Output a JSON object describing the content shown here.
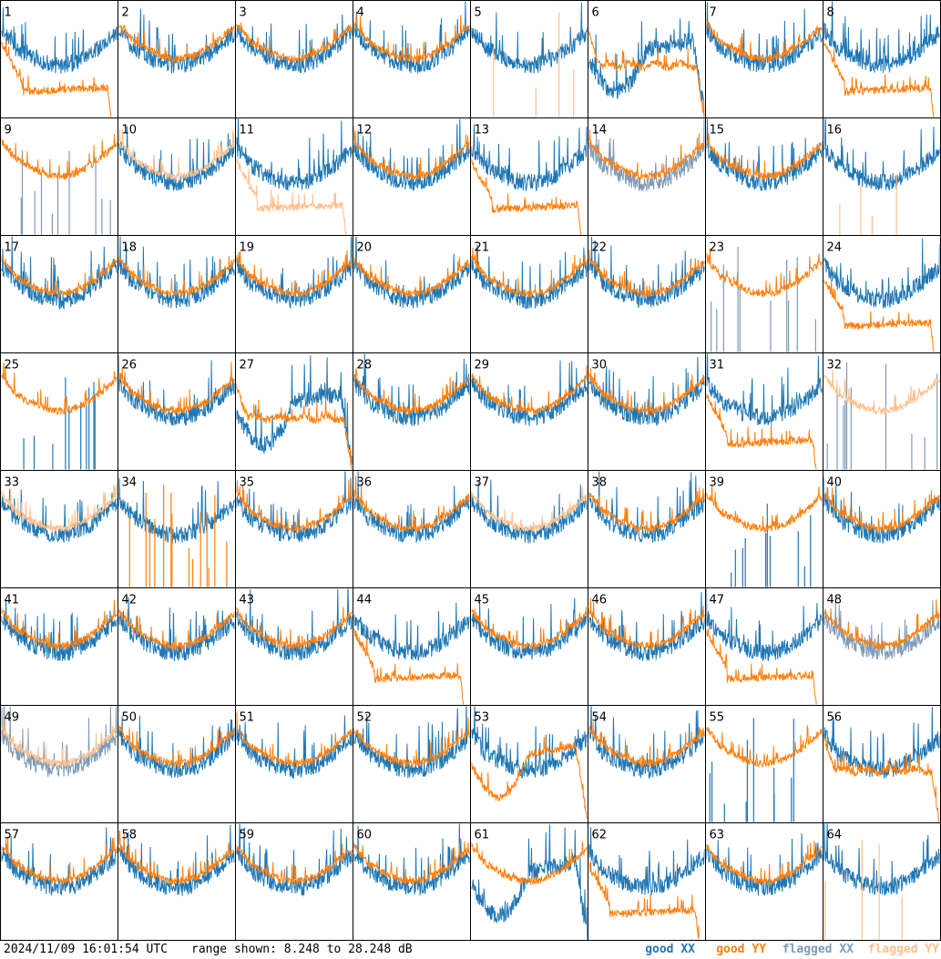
{
  "chart_data": {
    "type": "line",
    "layout": "small-multiples-8x8",
    "panels": [
      {
        "id": "1",
        "xx": "good",
        "yy": "good",
        "yy_shape": "drop",
        "xx_shape": "normal"
      },
      {
        "id": "2",
        "xx": "good",
        "yy": "good"
      },
      {
        "id": "3",
        "xx": "good",
        "yy": "good"
      },
      {
        "id": "4",
        "xx": "good",
        "yy": "good"
      },
      {
        "id": "5",
        "xx": "good",
        "yy": "flagged",
        "yy_shape": "spikes"
      },
      {
        "id": "6",
        "xx": "good",
        "yy": "good",
        "xx_shape": "dip",
        "yy_shape": "flat"
      },
      {
        "id": "7",
        "xx": "good",
        "yy": "good"
      },
      {
        "id": "8",
        "xx": "good",
        "yy": "good",
        "yy_shape": "drop"
      },
      {
        "id": "9",
        "xx": "flagged",
        "yy": "good",
        "xx_shape": "spikes"
      },
      {
        "id": "10",
        "xx": "good",
        "yy": "flagged"
      },
      {
        "id": "11",
        "xx": "good",
        "yy": "flagged",
        "yy_shape": "drop"
      },
      {
        "id": "12",
        "xx": "good",
        "yy": "good"
      },
      {
        "id": "13",
        "xx": "good",
        "yy": "good",
        "yy_shape": "drop"
      },
      {
        "id": "14",
        "xx": "flagged",
        "yy": "good"
      },
      {
        "id": "15",
        "xx": "good",
        "yy": "good"
      },
      {
        "id": "16",
        "xx": "good",
        "yy": "flagged",
        "yy_shape": "spikes"
      },
      {
        "id": "17",
        "xx": "good",
        "yy": "good"
      },
      {
        "id": "18",
        "xx": "good",
        "yy": "good"
      },
      {
        "id": "19",
        "xx": "good",
        "yy": "good"
      },
      {
        "id": "20",
        "xx": "good",
        "yy": "good"
      },
      {
        "id": "21",
        "xx": "good",
        "yy": "good"
      },
      {
        "id": "22",
        "xx": "good",
        "yy": "good"
      },
      {
        "id": "23",
        "xx": "flagged",
        "yy": "good",
        "xx_shape": "spikes"
      },
      {
        "id": "24",
        "xx": "good",
        "yy": "good",
        "yy_shape": "drop"
      },
      {
        "id": "25",
        "xx": "good",
        "yy": "good",
        "xx_shape": "spikes"
      },
      {
        "id": "26",
        "xx": "good",
        "yy": "good"
      },
      {
        "id": "27",
        "xx": "good",
        "yy": "good",
        "xx_shape": "dip",
        "yy_shape": "flat"
      },
      {
        "id": "28",
        "xx": "good",
        "yy": "good"
      },
      {
        "id": "29",
        "xx": "good",
        "yy": "good"
      },
      {
        "id": "30",
        "xx": "good",
        "yy": "good"
      },
      {
        "id": "31",
        "xx": "good",
        "yy": "good",
        "yy_shape": "drop"
      },
      {
        "id": "32",
        "xx": "flagged",
        "yy": "flagged",
        "xx_shape": "spikes"
      },
      {
        "id": "33",
        "xx": "good",
        "yy": "flagged"
      },
      {
        "id": "34",
        "xx": "good",
        "yy": "good",
        "yy_shape": "spikes"
      },
      {
        "id": "35",
        "xx": "good",
        "yy": "good"
      },
      {
        "id": "36",
        "xx": "good",
        "yy": "good"
      },
      {
        "id": "37",
        "xx": "good",
        "yy": "flagged"
      },
      {
        "id": "38",
        "xx": "good",
        "yy": "good"
      },
      {
        "id": "39",
        "xx": "good",
        "yy": "good",
        "xx_shape": "spikes"
      },
      {
        "id": "40",
        "xx": "good",
        "yy": "good"
      },
      {
        "id": "41",
        "xx": "good",
        "yy": "good"
      },
      {
        "id": "42",
        "xx": "good",
        "yy": "good"
      },
      {
        "id": "43",
        "xx": "good",
        "yy": "good"
      },
      {
        "id": "44",
        "xx": "good",
        "yy": "good",
        "yy_shape": "drop"
      },
      {
        "id": "45",
        "xx": "good",
        "yy": "good"
      },
      {
        "id": "46",
        "xx": "good",
        "yy": "good"
      },
      {
        "id": "47",
        "xx": "good",
        "yy": "good",
        "yy_shape": "drop"
      },
      {
        "id": "48",
        "xx": "flagged",
        "yy": "good"
      },
      {
        "id": "49",
        "xx": "flagged",
        "yy": "flagged"
      },
      {
        "id": "50",
        "xx": "good",
        "yy": "good"
      },
      {
        "id": "51",
        "xx": "good",
        "yy": "good"
      },
      {
        "id": "52",
        "xx": "good",
        "yy": "good"
      },
      {
        "id": "53",
        "xx": "good",
        "yy": "good",
        "yy_shape": "dip"
      },
      {
        "id": "54",
        "xx": "good",
        "yy": "good"
      },
      {
        "id": "55",
        "xx": "good",
        "yy": "good",
        "xx_shape": "spikes"
      },
      {
        "id": "56",
        "xx": "good",
        "yy": "good",
        "yy_shape": "flat"
      },
      {
        "id": "57",
        "xx": "good",
        "yy": "good"
      },
      {
        "id": "58",
        "xx": "good",
        "yy": "good"
      },
      {
        "id": "59",
        "xx": "good",
        "yy": "good"
      },
      {
        "id": "60",
        "xx": "good",
        "yy": "good"
      },
      {
        "id": "61",
        "xx": "good",
        "yy": "good",
        "xx_shape": "dip"
      },
      {
        "id": "62",
        "xx": "good",
        "yy": "good",
        "yy_shape": "drop"
      },
      {
        "id": "63",
        "xx": "good",
        "yy": "good"
      },
      {
        "id": "64",
        "xx": "good",
        "yy": "flagged",
        "yy_shape": "spikes"
      }
    ],
    "legend": [
      {
        "key": "good_xx",
        "label": "good XX",
        "color": "#1f77b4"
      },
      {
        "key": "good_yy",
        "label": "good YY",
        "color": "#ff7f0e"
      },
      {
        "key": "flagged_xx",
        "label": "flagged XX",
        "color": "#7f9bb5"
      },
      {
        "key": "flagged_yy",
        "label": "flagged YY",
        "color": "#ffc08c"
      }
    ],
    "ylim": [
      8.248,
      28.248
    ],
    "yunit": "dB"
  },
  "footer": {
    "timestamp": "2024/11/09 16:01:54 UTC",
    "range_text": "range shown: 8.248 to 28.248 dB"
  },
  "colors": {
    "good_xx": "#1f77b4",
    "good_yy": "#ff7f0e",
    "flagged_xx": "#7f9bb5",
    "flagged_yy": "#ffc08c"
  }
}
